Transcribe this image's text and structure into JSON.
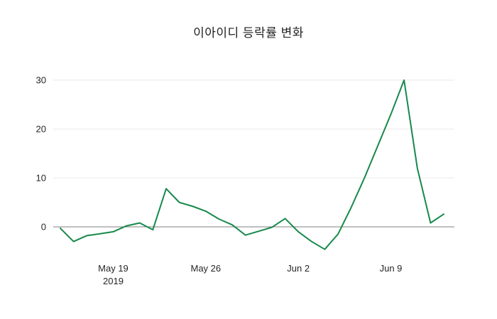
{
  "title": "이아이디 등락률 변화",
  "chart_data": {
    "type": "line",
    "title": "이아이디 등락률 변화",
    "x": [
      "2019-05-15",
      "2019-05-16",
      "2019-05-17",
      "2019-05-18",
      "2019-05-19",
      "2019-05-20",
      "2019-05-21",
      "2019-05-22",
      "2019-05-23",
      "2019-05-24",
      "2019-05-25",
      "2019-05-26",
      "2019-05-27",
      "2019-05-28",
      "2019-05-29",
      "2019-05-30",
      "2019-05-31",
      "2019-06-01",
      "2019-06-02",
      "2019-06-03",
      "2019-06-04",
      "2019-06-05",
      "2019-06-06",
      "2019-06-07",
      "2019-06-08",
      "2019-06-09",
      "2019-06-10",
      "2019-06-11",
      "2019-06-12",
      "2019-06-13"
    ],
    "y": [
      -0.3,
      -3.0,
      -1.8,
      -1.4,
      -1.0,
      0.2,
      0.8,
      -0.6,
      7.8,
      5.0,
      4.2,
      3.2,
      1.6,
      0.4,
      -1.7,
      -0.9,
      -0.1,
      1.7,
      -1.0,
      -3.0,
      -4.6,
      -1.5,
      4.0,
      10.0,
      16.5,
      23.0,
      30.0,
      12.0,
      0.8,
      2.6
    ],
    "ylabel": "",
    "xlabel": "",
    "ylim": [
      -6.5,
      32
    ],
    "yticks": [
      0,
      10,
      20,
      30
    ],
    "xticks": [
      {
        "index": 4,
        "label": "May 19",
        "sublabel": "2019"
      },
      {
        "index": 11,
        "label": "May 26",
        "sublabel": ""
      },
      {
        "index": 18,
        "label": "Jun 2",
        "sublabel": ""
      },
      {
        "index": 25,
        "label": "Jun 9",
        "sublabel": ""
      }
    ],
    "grid": true,
    "legend_position": "none",
    "line_color": "#17894b",
    "zero_line_color": "#7f7f7f",
    "grid_color": "#e8e8e8",
    "tick_label_color": "#262626"
  }
}
